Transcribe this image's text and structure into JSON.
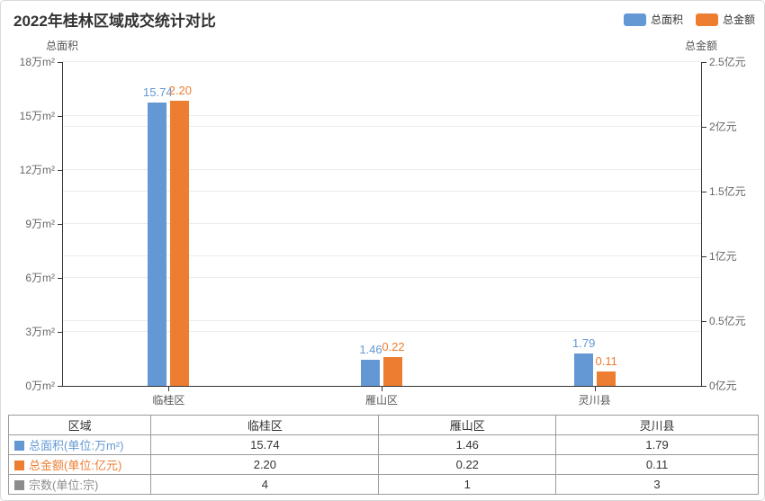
{
  "title": "2022年桂林区域成交统计对比",
  "legend": {
    "items": [
      {
        "label": "总面积",
        "color": "#6398D5"
      },
      {
        "label": "总金额",
        "color": "#ED7D31"
      }
    ]
  },
  "chart_data": {
    "type": "bar",
    "title": "2022年桂林区域成交统计对比",
    "categories": [
      "临桂区",
      "雁山区",
      "灵川县"
    ],
    "series": [
      {
        "name": "总面积",
        "axis": "left",
        "unit": "万m²",
        "color": "#6398D5",
        "values": [
          15.74,
          1.46,
          1.79
        ],
        "labels": [
          "15.74",
          "1.46",
          "1.79"
        ]
      },
      {
        "name": "总金额",
        "axis": "right",
        "unit": "亿元",
        "color": "#ED7D31",
        "values": [
          2.2,
          0.22,
          0.11
        ],
        "labels": [
          "2.20",
          "0.22",
          "0.11"
        ]
      }
    ],
    "y_left": {
      "name": "总面积",
      "min": 0,
      "max": 18,
      "tick_step": 3,
      "ticks": [
        "0万m²",
        "3万m²",
        "6万m²",
        "9万m²",
        "12万m²",
        "15万m²",
        "18万m²"
      ]
    },
    "y_right": {
      "name": "总金额",
      "min": 0,
      "max": 2.5,
      "tick_step": 0.5,
      "ticks": [
        "0亿元",
        "0.5亿元",
        "1亿元",
        "1.5亿元",
        "2亿元",
        "2.5亿元"
      ]
    },
    "grid": true,
    "legend_position": "top-right"
  },
  "table": {
    "header": [
      "区域",
      "临桂区",
      "雁山区",
      "灵川县"
    ],
    "rows": [
      {
        "label": "总面积(单位:万m²)",
        "color": "#6398D5",
        "values": [
          "15.74",
          "1.46",
          "1.79"
        ]
      },
      {
        "label": "总金额(单位:亿元)",
        "color": "#ED7D31",
        "values": [
          "2.20",
          "0.22",
          "0.11"
        ]
      },
      {
        "label": "宗数(单位:宗)",
        "color": "#8C8C8C",
        "values": [
          "4",
          "1",
          "3"
        ]
      }
    ]
  },
  "colors": {
    "blue": "#6398D5",
    "orange": "#ED7D31",
    "gray": "#8C8C8C",
    "axis": "#333333",
    "grid": "#ECECEC",
    "tick_text": "#666666"
  }
}
